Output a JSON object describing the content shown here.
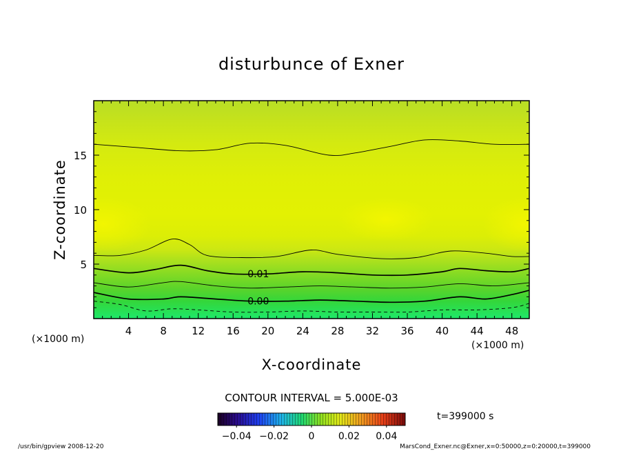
{
  "chart_data": {
    "type": "contour",
    "title": "disturbunce of Exner",
    "xlabel": "X-coordinate",
    "ylabel": "Z-coordinate",
    "x_unit_label": "(×1000 m)",
    "y_unit_label": "(×1000 m)",
    "xlim": [
      0,
      50
    ],
    "ylim": [
      0,
      20
    ],
    "x_ticks": [
      4,
      8,
      12,
      16,
      20,
      24,
      28,
      32,
      36,
      40,
      44,
      48
    ],
    "y_ticks": [
      5,
      10,
      15
    ],
    "contour_interval_text": "CONTOUR INTERVAL = 5.000E-03",
    "contour_interval": 0.005,
    "contour_labels": [
      {
        "text": "0.01",
        "x": 17.5,
        "z": 4.1
      },
      {
        "text": "0.00",
        "x": 17.5,
        "z": 1.6
      }
    ],
    "contours": [
      {
        "level": 0.02,
        "style": "thin",
        "points": [
          [
            0,
            16.0
          ],
          [
            5,
            15.7
          ],
          [
            10,
            15.4
          ],
          [
            14,
            15.5
          ],
          [
            18,
            16.1
          ],
          [
            22,
            15.9
          ],
          [
            27,
            15.0
          ],
          [
            30,
            15.2
          ],
          [
            34,
            15.8
          ],
          [
            38,
            16.4
          ],
          [
            42,
            16.3
          ],
          [
            46,
            16.0
          ],
          [
            50,
            16.0
          ]
        ]
      },
      {
        "level": 0.015,
        "style": "thin",
        "points": [
          [
            0,
            5.8
          ],
          [
            3,
            5.8
          ],
          [
            6,
            6.3
          ],
          [
            9,
            7.3
          ],
          [
            11,
            6.8
          ],
          [
            13,
            5.8
          ],
          [
            17,
            5.6
          ],
          [
            21,
            5.7
          ],
          [
            25,
            6.3
          ],
          [
            28,
            5.9
          ],
          [
            33,
            5.5
          ],
          [
            37,
            5.6
          ],
          [
            41,
            6.2
          ],
          [
            45,
            6.0
          ],
          [
            48,
            5.7
          ],
          [
            50,
            5.7
          ]
        ]
      },
      {
        "level": 0.01,
        "style": "thick",
        "points": [
          [
            0,
            4.6
          ],
          [
            4,
            4.2
          ],
          [
            7,
            4.5
          ],
          [
            10,
            4.9
          ],
          [
            13,
            4.4
          ],
          [
            16,
            4.1
          ],
          [
            20,
            4.1
          ],
          [
            24,
            4.3
          ],
          [
            28,
            4.2
          ],
          [
            32,
            4.0
          ],
          [
            36,
            4.0
          ],
          [
            40,
            4.3
          ],
          [
            42,
            4.6
          ],
          [
            45,
            4.4
          ],
          [
            48,
            4.3
          ],
          [
            50,
            4.6
          ]
        ]
      },
      {
        "level": 0.005,
        "style": "thin",
        "points": [
          [
            0,
            3.3
          ],
          [
            4,
            2.9
          ],
          [
            8,
            3.3
          ],
          [
            10,
            3.4
          ],
          [
            14,
            3.0
          ],
          [
            18,
            2.8
          ],
          [
            22,
            2.9
          ],
          [
            26,
            3.0
          ],
          [
            30,
            2.9
          ],
          [
            34,
            2.8
          ],
          [
            38,
            2.9
          ],
          [
            42,
            3.2
          ],
          [
            46,
            3.0
          ],
          [
            50,
            3.3
          ]
        ]
      },
      {
        "level": 0.0,
        "style": "thick",
        "points": [
          [
            0,
            2.4
          ],
          [
            4,
            1.8
          ],
          [
            8,
            1.8
          ],
          [
            10,
            2.0
          ],
          [
            14,
            1.8
          ],
          [
            18,
            1.6
          ],
          [
            22,
            1.6
          ],
          [
            26,
            1.7
          ],
          [
            30,
            1.6
          ],
          [
            34,
            1.5
          ],
          [
            38,
            1.6
          ],
          [
            42,
            2.0
          ],
          [
            45,
            1.8
          ],
          [
            48,
            2.2
          ],
          [
            50,
            2.6
          ]
        ]
      },
      {
        "level": -0.005,
        "style": "dashed",
        "points": [
          [
            0,
            1.6
          ],
          [
            3,
            1.3
          ],
          [
            6,
            0.7
          ],
          [
            9,
            0.9
          ],
          [
            12,
            0.8
          ],
          [
            16,
            0.6
          ],
          [
            20,
            0.6
          ],
          [
            24,
            0.7
          ],
          [
            28,
            0.6
          ],
          [
            32,
            0.6
          ],
          [
            36,
            0.6
          ],
          [
            40,
            0.8
          ],
          [
            44,
            0.8
          ],
          [
            48,
            1.0
          ],
          [
            50,
            1.4
          ]
        ]
      }
    ],
    "colorbar": {
      "range": [
        -0.05,
        0.05
      ],
      "ticks": [
        -0.04,
        -0.02,
        0,
        0.02,
        0.04
      ],
      "tick_labels": [
        "−0.04",
        "−0.02",
        "0",
        "0.02",
        "0.04"
      ]
    },
    "time_label": "t=399000 s",
    "footer_left": "/usr/bin/gpview  2008-12-20",
    "footer_right": "MarsCond_Exner.nc@Exner,x=0:50000,z=0:20000,t=399000",
    "colors": {
      "band_top": "#bfe01e",
      "band_mid": "#e4f200",
      "band_high": "#eef400",
      "band_low": "#1de86a"
    }
  }
}
